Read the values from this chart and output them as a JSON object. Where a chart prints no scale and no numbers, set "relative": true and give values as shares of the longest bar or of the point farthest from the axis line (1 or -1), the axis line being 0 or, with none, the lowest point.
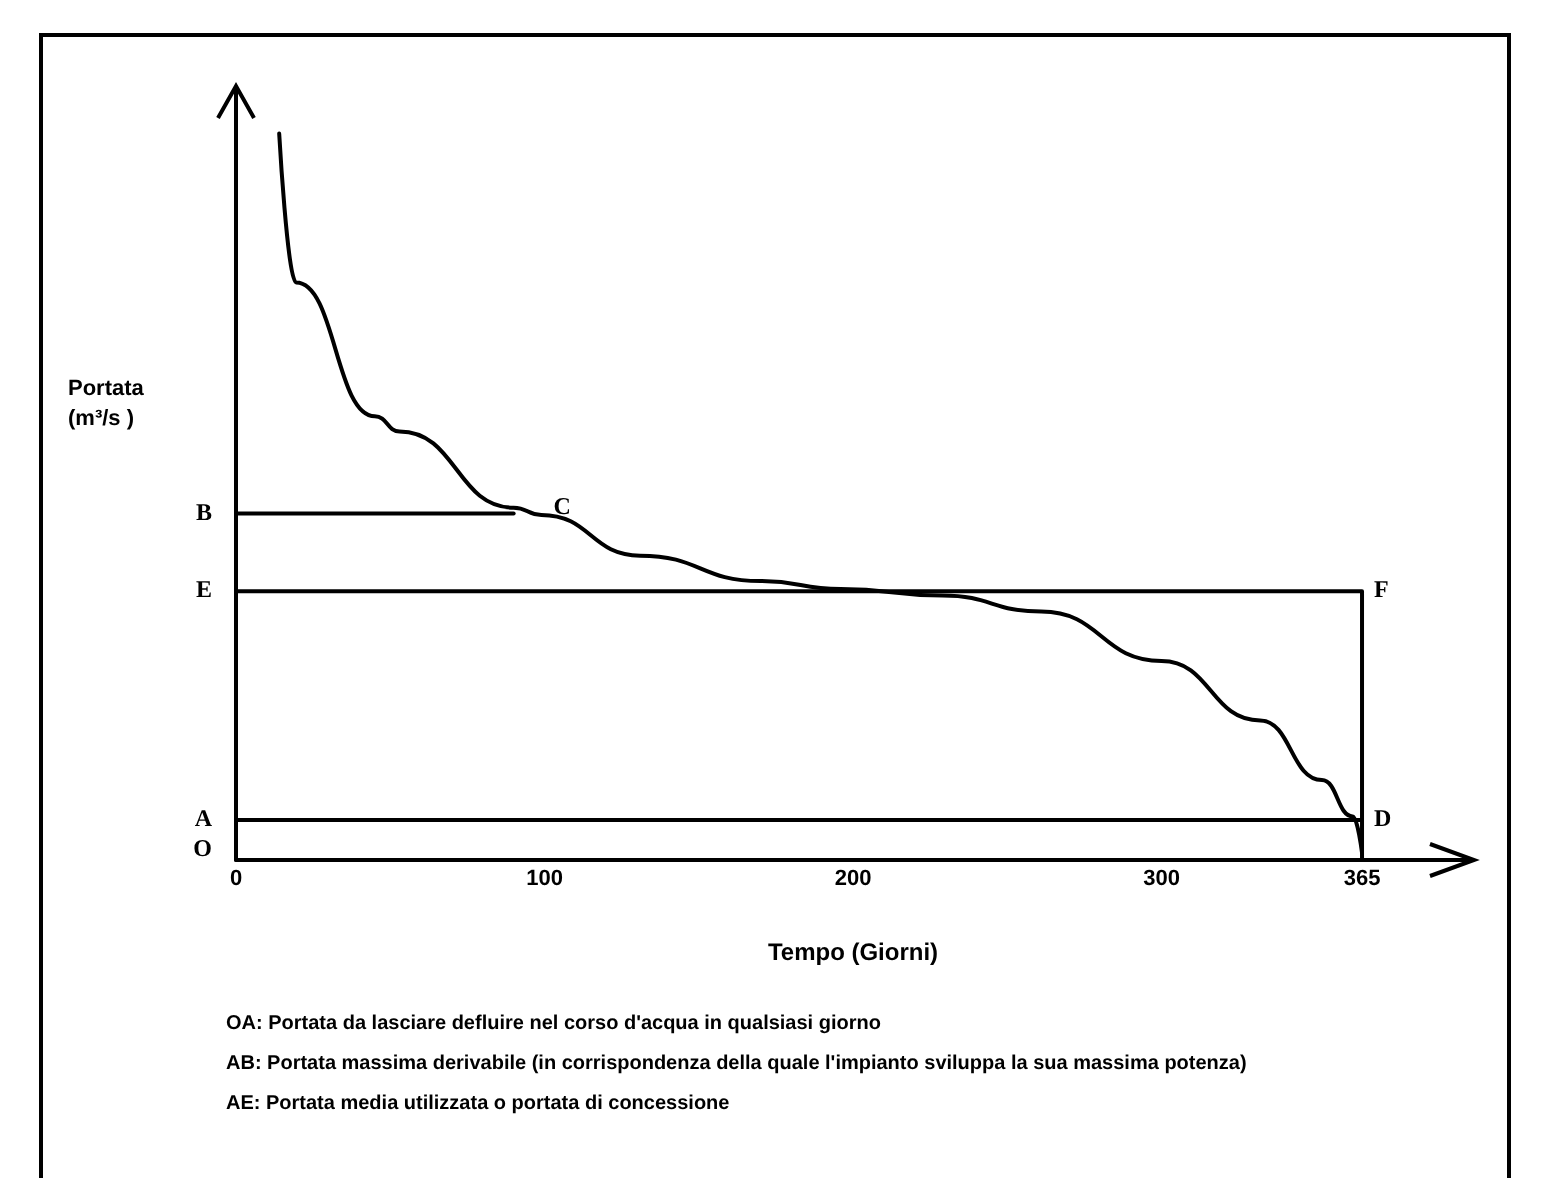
{
  "chart_data": {
    "type": "line",
    "relative": true,
    "xlabel": "Tempo (Giorni)",
    "ylabel": "Portata (m³/s )",
    "xlim": [
      0,
      400
    ],
    "xticks": [
      0,
      100,
      200,
      300,
      365
    ],
    "grid": false,
    "marker": "none",
    "line_style": "solid",
    "series": [
      {
        "color": "#000000",
        "x": [
          14,
          19.5,
          45,
          53,
          90,
          99,
          131,
          170,
          196,
          229,
          261,
          300,
          332,
          352,
          362,
          365
        ],
        "values": [
          1,
          0.795,
          0.611,
          0.59,
          0.485,
          0.475,
          0.419,
          0.384,
          0.373,
          0.364,
          0.342,
          0.274,
          0.192,
          0.11,
          0.06,
          0.01
        ]
      },
      {
        "color": "#000000",
        "x": [
          0,
          90
        ],
        "values": [
          0.477,
          0.477
        ]
      },
      {
        "color": "#000000",
        "x": [
          0,
          365,
          365,
          365
        ],
        "values": [
          0.37,
          0.37,
          0.055,
          0
        ]
      },
      {
        "color": "#000000",
        "x": [
          0,
          365
        ],
        "values": [
          0.055,
          0.055
        ]
      }
    ],
    "annotations": [
      "O",
      {
        "text": "A",
        "x": 0,
        "y": 0.055
      },
      {
        "text": "B",
        "x": 0,
        "y": 0.477
      },
      {
        "text": "E",
        "x": 0,
        "y": 0.37
      },
      {
        "text": "C",
        "x": 99,
        "y": 0.485
      },
      {
        "text": "F",
        "x": 365,
        "y": 0.37
      },
      {
        "text": "D",
        "x": 365,
        "y": 0.055
      },
      "OA: Portata da lasciare defluire nel corso d'acqua in qualsiasi giorno",
      "AB: Portata massima derivabile (in corrispondenza della quale l'impianto sviluppa la sua massima potenza)",
      "AE: Portata media utilizzata o portata di concessione"
    ]
  }
}
